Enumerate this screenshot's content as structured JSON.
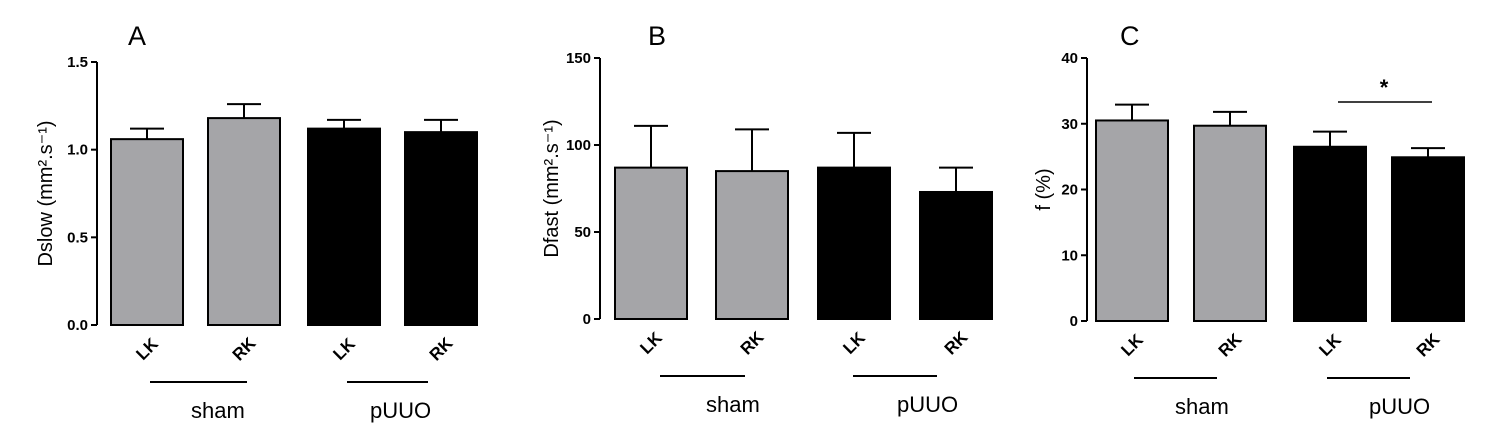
{
  "colors": {
    "sham": "#a5a5a8",
    "pUUO": "#000000"
  },
  "chart_data": [
    {
      "type": "bar",
      "panel": "A",
      "categories": [
        "LK",
        "RK",
        "LK",
        "RK"
      ],
      "groups": [
        {
          "label": "sham",
          "members": [
            0,
            1
          ]
        },
        {
          "label": "pUUO",
          "members": [
            2,
            3
          ]
        }
      ],
      "values": [
        1.06,
        1.18,
        1.12,
        1.1
      ],
      "errors": [
        0.06,
        0.08,
        0.05,
        0.07
      ],
      "ylabel": "Dslow (mm².s⁻¹)",
      "ylim": [
        0,
        1.5
      ],
      "yticks": [
        "0.0",
        "0.5",
        "1.0",
        "1.5"
      ],
      "significance": ""
    },
    {
      "type": "bar",
      "panel": "B",
      "categories": [
        "LK",
        "RK",
        "LK",
        "RK"
      ],
      "groups": [
        {
          "label": "sham",
          "members": [
            0,
            1
          ]
        },
        {
          "label": "pUUO",
          "members": [
            2,
            3
          ]
        }
      ],
      "values": [
        87,
        85,
        87,
        73
      ],
      "errors": [
        24,
        24,
        20,
        14
      ],
      "ylabel": "Dfast (mm².s⁻¹)",
      "ylim": [
        0,
        150
      ],
      "yticks": [
        "0",
        "50",
        "100",
        "150"
      ],
      "significance": ""
    },
    {
      "type": "bar",
      "panel": "C",
      "categories": [
        "LK",
        "RK",
        "LK",
        "RK"
      ],
      "groups": [
        {
          "label": "sham",
          "members": [
            0,
            1
          ]
        },
        {
          "label": "pUUO",
          "members": [
            2,
            3
          ]
        }
      ],
      "values": [
        30.5,
        29.7,
        26.5,
        24.9
      ],
      "errors": [
        2.4,
        2.1,
        2.3,
        1.4
      ],
      "ylabel": "f (%)",
      "ylim": [
        0,
        40
      ],
      "yticks": [
        "0",
        "10",
        "20",
        "30",
        "40"
      ],
      "significance": "*"
    }
  ]
}
